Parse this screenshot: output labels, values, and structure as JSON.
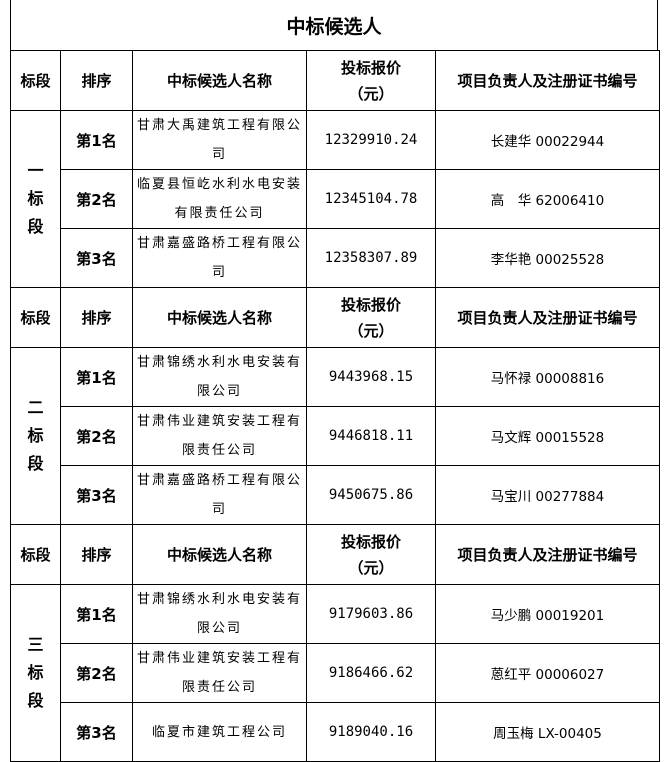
{
  "title": "中标候选人",
  "headers": [
    "标段",
    "排序",
    "中标候选人名称",
    "投标报价（元）",
    "项目负责人及注册证书编号"
  ],
  "sections": [
    {
      "label": "一标段",
      "rows": [
        {
          "rank": "第1名",
          "name": "甘肃大禹建筑工程有限公司",
          "price": "12329910.24",
          "manager": "长建华 00022944"
        },
        {
          "rank": "第2名",
          "name": "临夏县恒屹水利水电安装有限责任公司",
          "price": "12345104.78",
          "manager": "高　华 62006410"
        },
        {
          "rank": "第3名",
          "name": "甘肃嘉盛路桥工程有限公司",
          "price": "12358307.89",
          "manager": "李华艳 00025528"
        }
      ]
    },
    {
      "label": "二标段",
      "rows": [
        {
          "rank": "第1名",
          "name": "甘肃锦绣水利水电安装有限公司",
          "price": "9443968.15",
          "manager": "马怀禄 00008816"
        },
        {
          "rank": "第2名",
          "name": "甘肃伟业建筑安装工程有限责任公司",
          "price": "9446818.11",
          "manager": "马文辉 00015528"
        },
        {
          "rank": "第3名",
          "name": "甘肃嘉盛路桥工程有限公司",
          "price": "9450675.86",
          "manager": "马宝川 00277884"
        }
      ]
    },
    {
      "label": "三标段",
      "rows": [
        {
          "rank": "第1名",
          "name": "甘肃锦绣水利水电安装有限公司",
          "price": "9179603.86",
          "manager": "马少鹏 00019201"
        },
        {
          "rank": "第2名",
          "name": "甘肃伟业建筑安装工程有限责任公司",
          "price": "9186466.62",
          "manager": "蒽红平 00006027"
        },
        {
          "rank": "第3名",
          "name": "临夏市建筑工程公司",
          "price": "9189040.16",
          "manager": "周玉梅 LX-00405"
        }
      ]
    }
  ]
}
